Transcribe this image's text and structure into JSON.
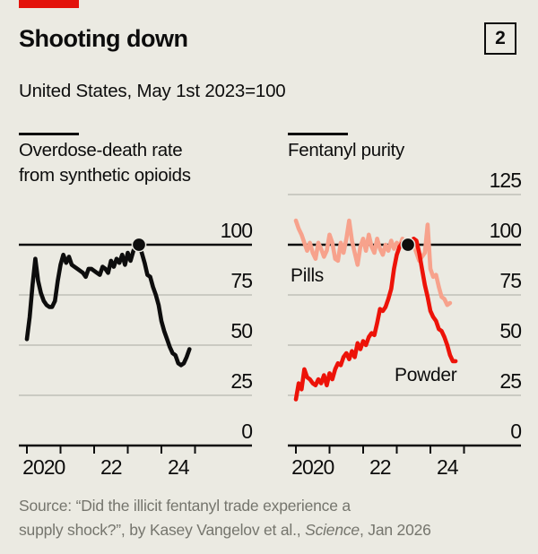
{
  "header": {
    "title": "Shooting down",
    "index_badge": "2",
    "subtitle": "United States, May 1st 2023=100"
  },
  "colors": {
    "background": "#ebeae2",
    "accent_red": "#e3120b",
    "powder_line": "#ed1309",
    "pills_line": "#f7a28c",
    "overdose_line": "#0d0d0d",
    "gridline": "#c0c0b8",
    "baseline_and_axis": "#0d0d0d",
    "source_text": "#75756d"
  },
  "source": {
    "line1": "Source: “Did the illicit fentanyl trade experience a",
    "line2_prefix": "supply shock?”, by Kasey Vangelov et al., ",
    "line2_italic": "Science",
    "line2_suffix": ", Jan 2026"
  },
  "chart_data": [
    {
      "type": "line",
      "title": "Overdose-death rate from synthetic opioids",
      "title_lines": [
        "Overdose-death rate",
        "from synthetic opioids"
      ],
      "x_start": "2020-01",
      "x_interval": "monthly",
      "x_tick_labels": [
        {
          "label": "2020",
          "year_slot": 0
        },
        {
          "label": "22",
          "year_slot": 2
        },
        {
          "label": "24",
          "year_slot": 4
        }
      ],
      "ylim": [
        0,
        110
      ],
      "yticks": [
        0,
        25,
        50,
        75,
        100
      ],
      "baseline_value": 100,
      "highlight_dot": {
        "date": "2023-05",
        "value": 100
      },
      "series": [
        {
          "name": "Overdose-death rate from synthetic opioids",
          "label": "",
          "color": "#0d0d0d",
          "values": [
            53,
            64,
            80,
            93,
            82,
            76,
            72,
            70,
            69,
            69,
            72,
            82,
            90,
            95,
            91,
            94,
            90,
            89,
            88,
            87,
            86,
            84,
            88,
            88,
            87,
            86,
            85,
            89,
            88,
            86,
            92,
            89,
            93,
            91,
            95,
            90,
            96,
            92,
            97,
            99,
            100,
            96,
            91,
            85,
            84,
            79,
            75,
            70,
            62,
            57,
            53,
            49,
            46,
            45,
            41,
            40,
            41,
            44,
            48
          ]
        }
      ]
    },
    {
      "type": "line",
      "title": "Fentanyl purity",
      "title_lines": [
        "Fentanyl purity",
        ""
      ],
      "x_start": "2020-01",
      "x_interval": "monthly",
      "x_tick_labels": [
        {
          "label": "2020",
          "year_slot": 0
        },
        {
          "label": "22",
          "year_slot": 2
        },
        {
          "label": "24",
          "year_slot": 4
        }
      ],
      "ylim": [
        0,
        125
      ],
      "yticks": [
        0,
        25,
        50,
        75,
        100,
        125
      ],
      "baseline_value": 100,
      "highlight_dot": {
        "date": "2023-05",
        "value": 100
      },
      "series": [
        {
          "name": "Pills",
          "label": "Pills",
          "color": "#f7a28c",
          "values": [
            112,
            108,
            105,
            101,
            97,
            101,
            96,
            93,
            101,
            98,
            94,
            97,
            105,
            101,
            93,
            92,
            101,
            96,
            103,
            112,
            102,
            96,
            90,
            99,
            103,
            97,
            105,
            99,
            96,
            103,
            98,
            95,
            100,
            97,
            102,
            98,
            101,
            99,
            103,
            98,
            100,
            98,
            100,
            96,
            92,
            94,
            96,
            110,
            88,
            84,
            85,
            79,
            74,
            73,
            70,
            71
          ]
        },
        {
          "name": "Powder",
          "label": "Powder",
          "color": "#ed1309",
          "values": [
            23,
            31,
            28,
            38,
            34,
            33,
            31,
            30,
            33,
            31,
            35,
            30,
            36,
            33,
            38,
            41,
            40,
            44,
            46,
            43,
            47,
            44,
            51,
            48,
            52,
            50,
            54,
            56,
            55,
            61,
            68,
            67,
            69,
            73,
            78,
            88,
            95,
            99,
            101,
            102,
            100,
            101,
            103,
            102,
            96,
            88,
            80,
            74,
            67,
            64,
            62,
            58,
            57,
            54,
            50,
            45,
            42,
            42
          ]
        }
      ]
    }
  ]
}
